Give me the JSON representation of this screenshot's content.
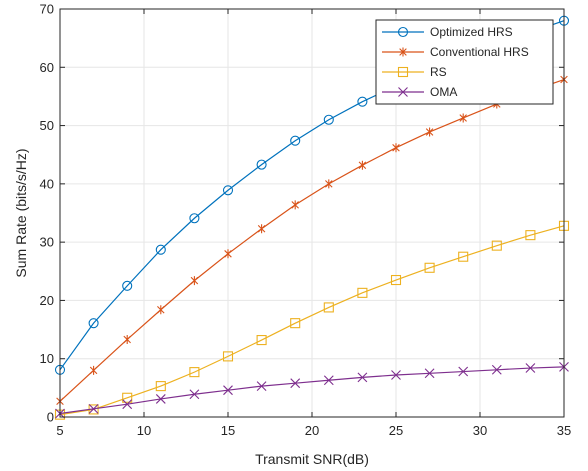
{
  "chart_data": {
    "type": "line",
    "title": "",
    "xlabel": "Transmit SNR(dB)",
    "ylabel": "Sum Rate (bits/s/Hz)",
    "xlim": [
      5,
      35
    ],
    "ylim": [
      0,
      70
    ],
    "xticks": [
      "5",
      "10",
      "15",
      "20",
      "25",
      "30",
      "35"
    ],
    "yticks": [
      "0",
      "10",
      "20",
      "30",
      "40",
      "50",
      "60",
      "70"
    ],
    "grid": true,
    "legend_position": "top-right",
    "x": [
      5,
      7,
      9,
      11,
      13,
      15,
      17,
      19,
      21,
      23,
      25,
      27,
      29,
      31,
      33,
      35
    ],
    "series": [
      {
        "name": "Optimized HRS",
        "color": "#0072BD",
        "marker": "circle",
        "values": [
          8.1,
          16.1,
          22.5,
          28.7,
          34.1,
          38.9,
          43.3,
          47.4,
          51.0,
          54.1,
          56.8,
          59.3,
          61.6,
          63.8,
          66.0,
          68.0
        ]
      },
      {
        "name": "Conventional HRS",
        "color": "#D95319",
        "marker": "asterisk",
        "values": [
          2.7,
          8.0,
          13.3,
          18.4,
          23.4,
          28.0,
          32.3,
          36.4,
          40.0,
          43.2,
          46.2,
          48.9,
          51.3,
          53.7,
          55.9,
          57.9
        ]
      },
      {
        "name": "RS",
        "color": "#EDB120",
        "marker": "square",
        "values": [
          0.4,
          1.3,
          3.3,
          5.3,
          7.7,
          10.4,
          13.2,
          16.1,
          18.8,
          21.3,
          23.5,
          25.6,
          27.5,
          29.4,
          31.2,
          32.8
        ]
      },
      {
        "name": "OMA",
        "color": "#7E2F8E",
        "marker": "x",
        "values": [
          0.6,
          1.4,
          2.2,
          3.1,
          3.9,
          4.6,
          5.3,
          5.8,
          6.3,
          6.8,
          7.2,
          7.5,
          7.8,
          8.1,
          8.4,
          8.6
        ]
      }
    ]
  }
}
